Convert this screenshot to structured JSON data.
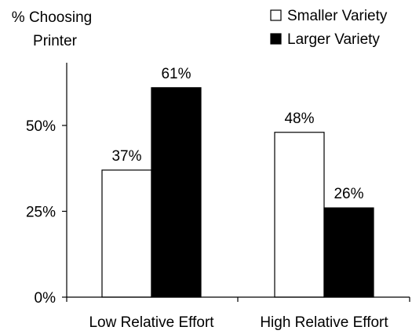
{
  "chart_data": {
    "type": "bar",
    "ylabel_lines": [
      "% Choosing",
      "Printer"
    ],
    "xlabel": "",
    "categories": [
      "Low Relative Effort",
      "High Relative Effort"
    ],
    "series": [
      {
        "name": "Smaller Variety",
        "values": [
          37,
          48
        ],
        "data_labels": [
          "37%",
          "48%"
        ],
        "fill": "#ffffff"
      },
      {
        "name": "Larger Variety",
        "values": [
          61,
          26
        ],
        "data_labels": [
          "61%",
          "26%"
        ],
        "fill": "#000000"
      }
    ],
    "yticks": [
      0,
      25,
      50
    ],
    "ytick_labels": [
      "0%",
      "25%",
      "50%"
    ],
    "ylim": [
      0,
      70
    ],
    "grid": false,
    "legend_position": "top-right"
  }
}
